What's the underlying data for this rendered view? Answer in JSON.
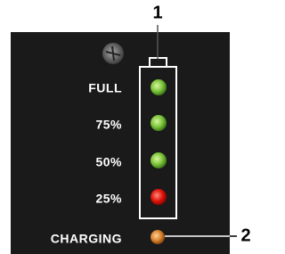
{
  "callouts": [
    "1",
    "2"
  ],
  "levels": [
    "FULL",
    "75%",
    "50%",
    "25%"
  ],
  "status": "CHARGING"
}
